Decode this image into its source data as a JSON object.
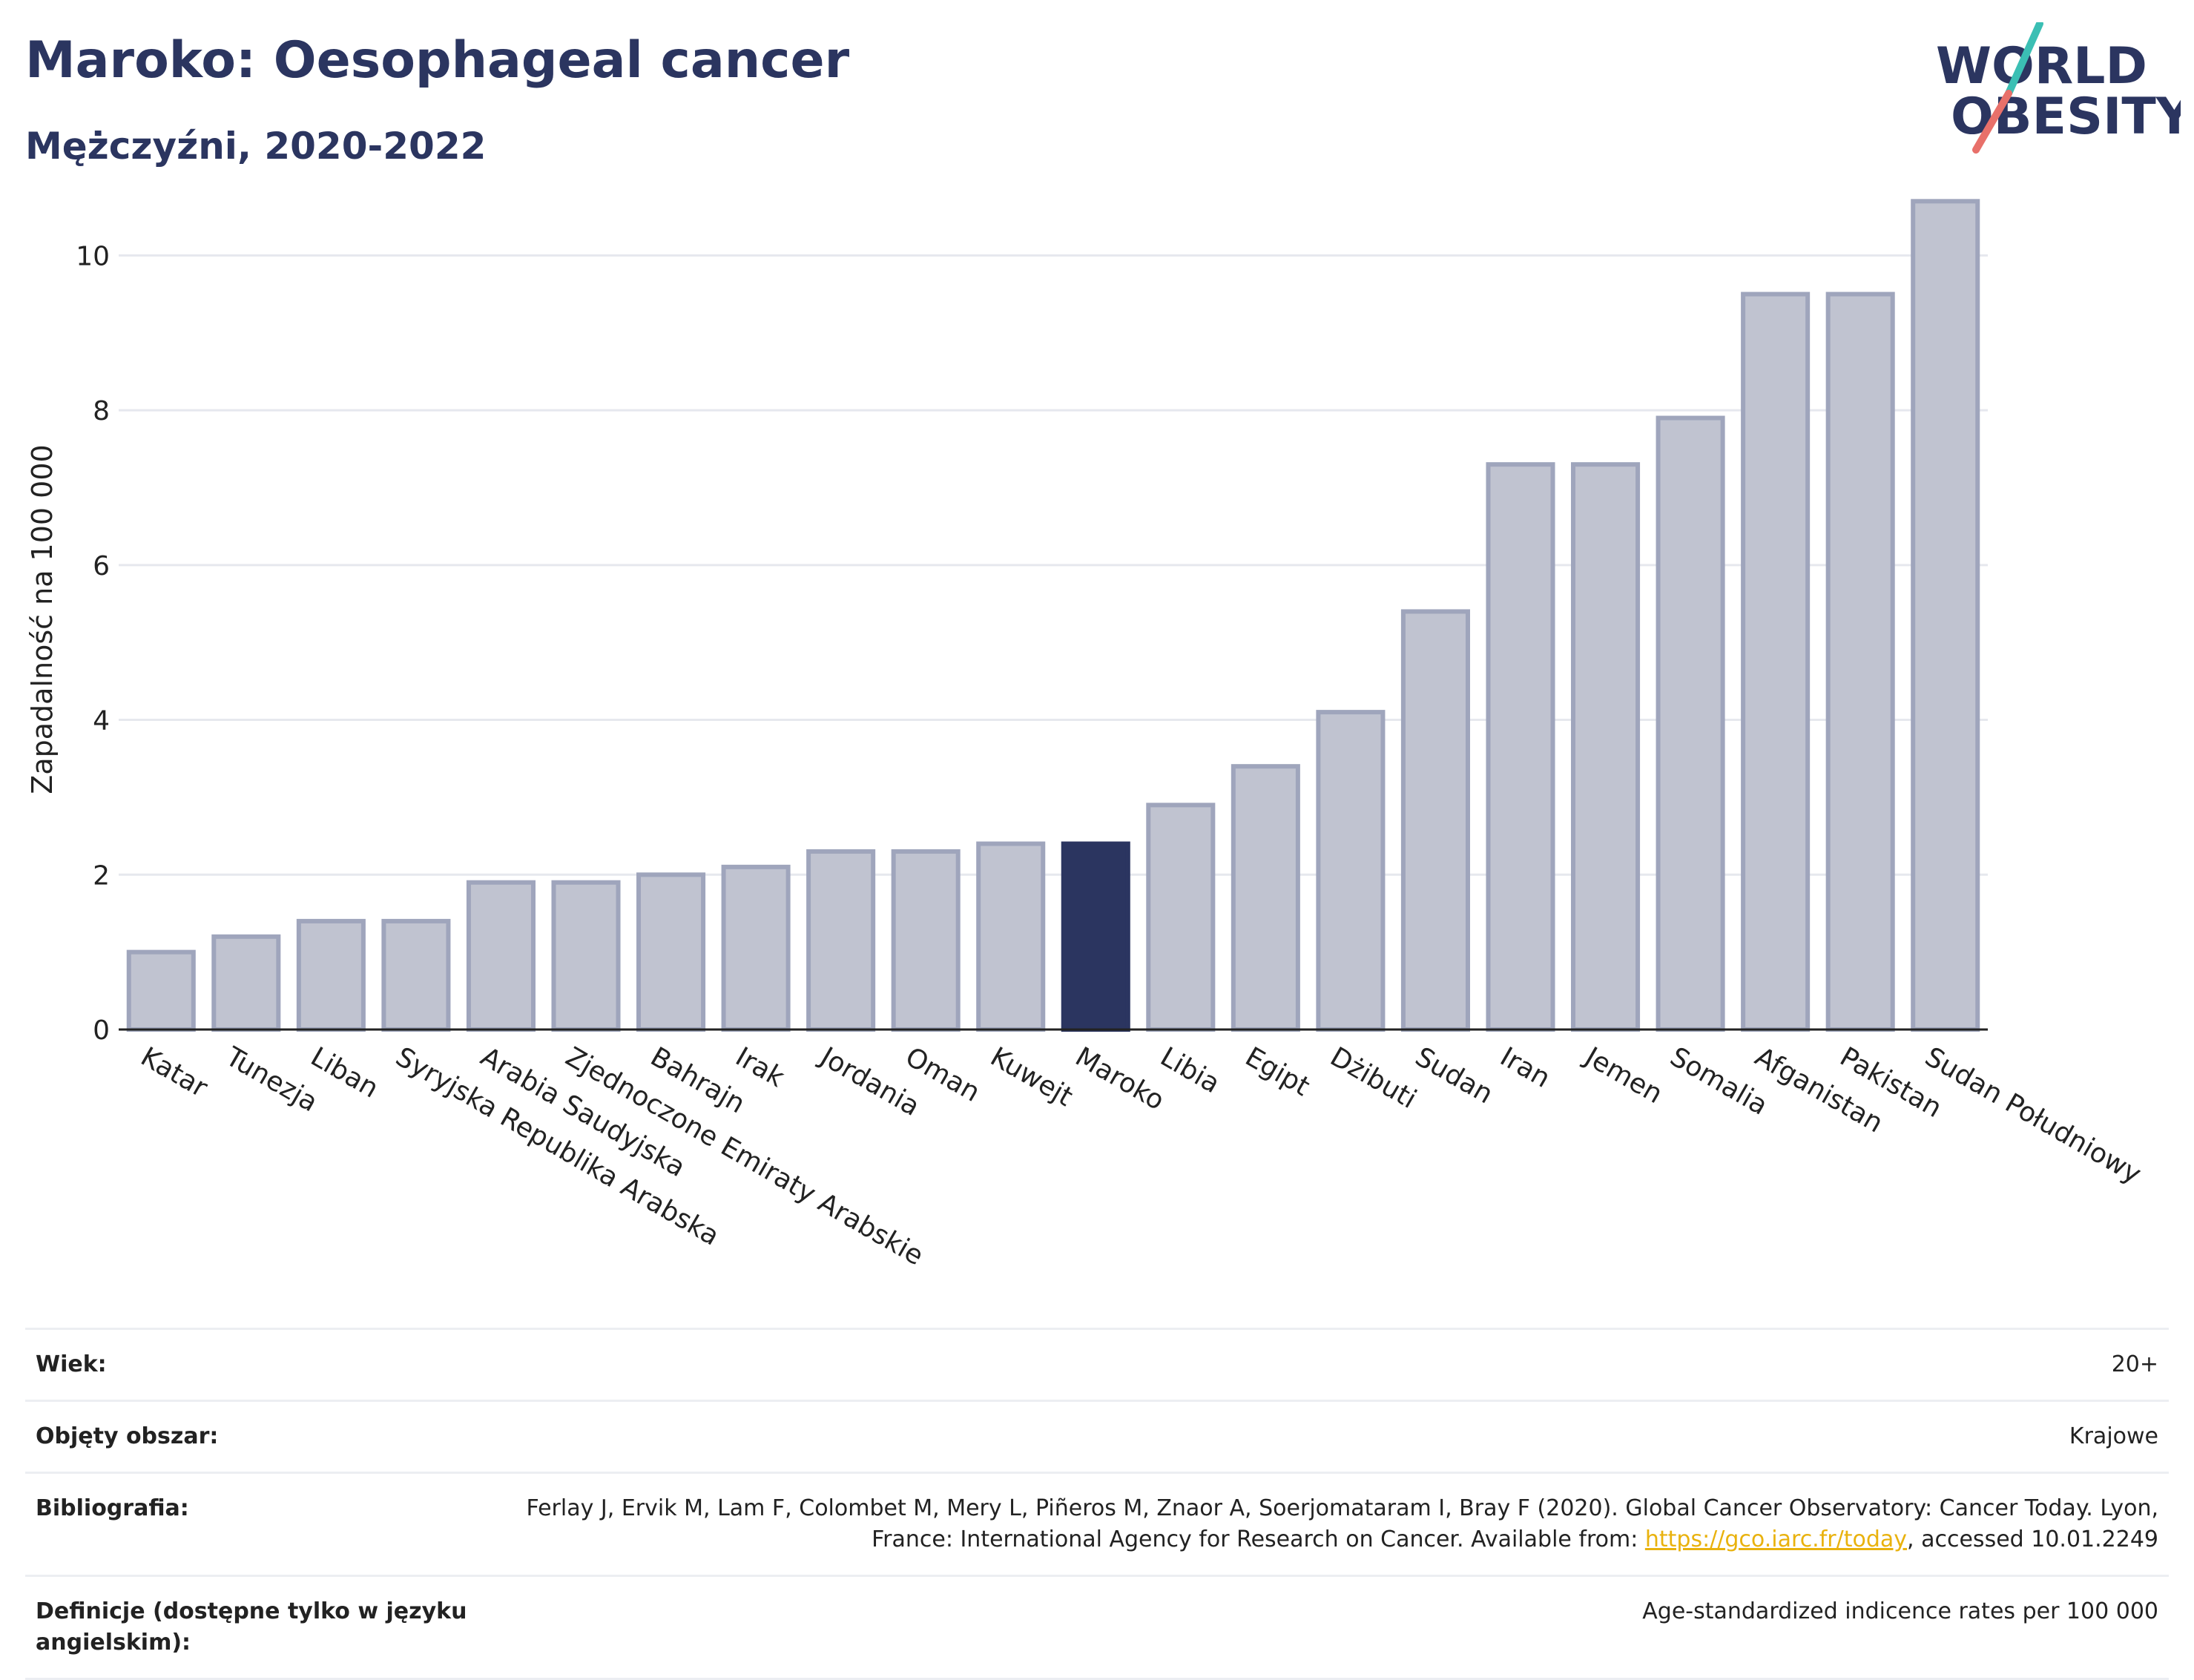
{
  "header": {
    "title": "Maroko: Oesophageal cancer",
    "subtitle": "Mężczyźni, 2020-2022"
  },
  "logo": {
    "line1": "WORLD",
    "line2": "OBESITY",
    "colors": {
      "text": "#2b3560",
      "slash_teal": "#3bbfb4",
      "slash_coral": "#e8706a"
    }
  },
  "chart_data": {
    "type": "bar",
    "ylabel": "Zapadalność na 100 000",
    "ylim": [
      0,
      11
    ],
    "yticks": [
      0,
      2,
      4,
      6,
      8,
      10
    ],
    "grid": true,
    "highlight": "Maroko",
    "categories": [
      "Katar",
      "Tunezja",
      "Liban",
      "Syryjska Republika Arabska",
      "Arabia Saudyjska",
      "Zjednoczone Emiraty Arabskie",
      "Bahrajn",
      "Irak",
      "Jordania",
      "Oman",
      "Kuwejt",
      "Maroko",
      "Libia",
      "Egipt",
      "Dżibuti",
      "Sudan",
      "Iran",
      "Jemen",
      "Somalia",
      "Afganistan",
      "Pakistan",
      "Sudan Południowy"
    ],
    "values": [
      1.0,
      1.2,
      1.4,
      1.4,
      1.9,
      1.9,
      2.0,
      2.1,
      2.3,
      2.3,
      2.4,
      2.4,
      2.9,
      3.4,
      4.1,
      5.4,
      7.3,
      7.3,
      7.9,
      9.5,
      9.5,
      10.7
    ],
    "colors": {
      "bar": "#c0c3d0",
      "bar_edge": "#9fa5bc",
      "highlight": "#2b3560"
    }
  },
  "info_table": [
    {
      "label": "Wiek:",
      "value": "20+"
    },
    {
      "label": "Objęty obszar:",
      "value": "Krajowe"
    },
    {
      "label": "Bibliografia:",
      "value_before": "Ferlay J, Ervik M, Lam F, Colombet M, Mery L, Piñeros M, Znaor A, Soerjomataram I, Bray F (2020). Global Cancer Observatory: Cancer Today. Lyon, France: International Agency for Research on Cancer. Available from: ",
      "link": "https://gco.iarc.fr/today",
      "value_after": ", accessed 10.01.2249"
    },
    {
      "label": "Definicje (dostępne tylko w języku angielskim):",
      "value": "Age-standardized indicence rates per 100 000"
    }
  ]
}
